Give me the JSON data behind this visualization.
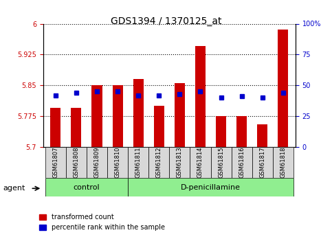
{
  "title": "GDS1394 / 1370125_at",
  "samples": [
    "GSM61807",
    "GSM61808",
    "GSM61809",
    "GSM61810",
    "GSM61811",
    "GSM61812",
    "GSM61813",
    "GSM61814",
    "GSM61815",
    "GSM61816",
    "GSM61817",
    "GSM61818"
  ],
  "red_values": [
    5.795,
    5.795,
    5.85,
    5.85,
    5.865,
    5.8,
    5.855,
    5.945,
    5.775,
    5.775,
    5.755,
    5.985
  ],
  "blue_values": [
    42,
    44,
    45,
    45,
    42,
    42,
    43,
    45,
    40,
    41,
    40,
    44
  ],
  "ylim_left": [
    5.7,
    6.0
  ],
  "ylim_right": [
    0,
    100
  ],
  "yticks_left": [
    5.7,
    5.775,
    5.85,
    5.925,
    6.0
  ],
  "yticks_right": [
    0,
    25,
    50,
    75,
    100
  ],
  "ytick_labels_left": [
    "5.7",
    "5.775",
    "5.85",
    "5.925",
    "6"
  ],
  "ytick_labels_right": [
    "0",
    "25",
    "50",
    "75",
    "100%"
  ],
  "bar_color": "#cc0000",
  "blue_color": "#0000cc",
  "bar_width": 0.5,
  "blue_marker_size": 5,
  "control_label": "control",
  "dpenicillamine_label": "D-penicillamine",
  "agent_label": "agent",
  "legend_red": "transformed count",
  "legend_blue": "percentile rank within the sample",
  "grid_color": "black",
  "tick_color_left": "#cc0000",
  "tick_color_right": "#0000cc",
  "sample_box_color": "#d8d8d8",
  "group_box_color": "#90ee90"
}
